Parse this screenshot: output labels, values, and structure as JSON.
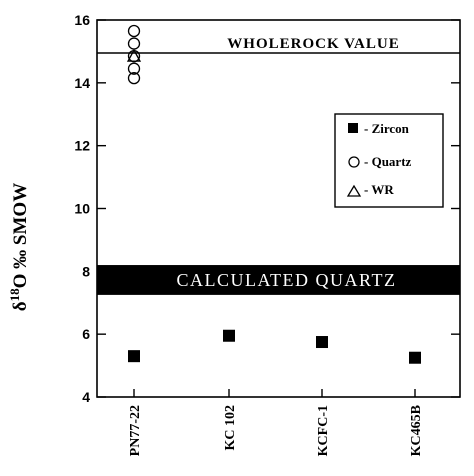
{
  "chart_data": {
    "type": "scatter",
    "categories": [
      "PN77-22",
      "KC 102",
      "KCFC-1",
      "KC465B"
    ],
    "ylabel_delta": "δ",
    "ylabel_sup": "18",
    "ylabel_rest": "O ‰ SMOW",
    "ylim": [
      4,
      16
    ],
    "yticks": [
      "4",
      "6",
      "8",
      "10",
      "12",
      "14",
      "16"
    ],
    "series": [
      {
        "name": "- Zircon",
        "marker": "square",
        "points": [
          {
            "category": "PN77-22",
            "y": 5.3
          },
          {
            "category": "KC 102",
            "y": 5.95
          },
          {
            "category": "KCFC-1",
            "y": 5.75
          },
          {
            "category": "KC465B",
            "y": 5.25
          }
        ]
      },
      {
        "name": "- Quartz",
        "marker": "circle",
        "points": [
          {
            "category": "PN77-22",
            "y": 15.65
          },
          {
            "category": "PN77-22",
            "y": 15.25
          },
          {
            "category": "PN77-22",
            "y": 14.85
          },
          {
            "category": "PN77-22",
            "y": 14.45
          },
          {
            "category": "PN77-22",
            "y": 14.15
          }
        ]
      },
      {
        "name": "- WR",
        "marker": "triangle",
        "points": [
          {
            "category": "PN77-22",
            "y": 14.85
          }
        ]
      }
    ],
    "reference_lines": [
      {
        "label": "WHOLEROCK VALUE",
        "y": 14.95
      }
    ],
    "bands": [
      {
        "label": "CALCULATED QUARTZ",
        "y_range": [
          7.25,
          8.2
        ],
        "color": "#000000"
      }
    ],
    "legend": {
      "position": "right"
    },
    "grid": false
  }
}
